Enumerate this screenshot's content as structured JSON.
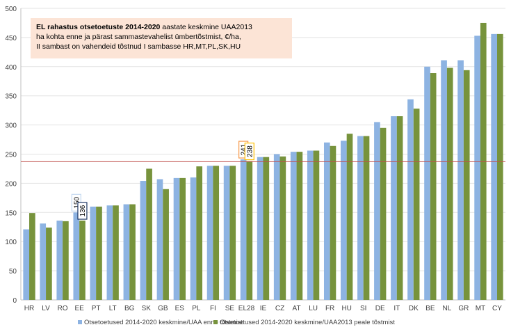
{
  "chart_data": {
    "type": "bar",
    "title_bold": "EL rahastus otsetoetuste 2014-2020",
    "title_rest": " aastate keskmine  UAA2013",
    "title_line2": "ha kohta enne ja pärast sammastevahelist ümbertõstmist, €/ha,",
    "title_line3": "II sambast on vahendeid tõstnud I sambasse HR,MT,PL,SK,HU",
    "categories": [
      "HR",
      "LV",
      "RO",
      "EE",
      "PT",
      "LT",
      "BG",
      "SK",
      "GB",
      "ES",
      "PL",
      "FI",
      "SE",
      "EL28",
      "IE",
      "CZ",
      "AT",
      "LU",
      "FR",
      "HU",
      "SI",
      "DE",
      "IT",
      "DK",
      "BE",
      "NL",
      "GR",
      "MT",
      "CY"
    ],
    "series": [
      {
        "name": "Otsetoetused 2014-2020 keskmine/UAA enne tõstmist",
        "color": "#8db3e2",
        "values": [
          121,
          131,
          136,
          150,
          160,
          162,
          164,
          204,
          207,
          209,
          210,
          230,
          230,
          241,
          245,
          250,
          254,
          256,
          270,
          273,
          281,
          305,
          315,
          344,
          400,
          411,
          411,
          453,
          456
        ]
      },
      {
        "name": "Otsetoetused 2014-2020 keskmine/UAA2013 peale tõstmist",
        "color": "#77933c",
        "values": [
          149,
          124,
          135,
          136,
          160,
          162,
          164,
          225,
          190,
          209,
          229,
          230,
          230,
          238,
          245,
          246,
          254,
          256,
          264,
          285,
          281,
          295,
          315,
          328,
          389,
          398,
          394,
          475,
          456
        ]
      }
    ],
    "data_labels": [
      {
        "category": "EE",
        "series": 0,
        "text": "150",
        "border": "#c5d9f1"
      },
      {
        "category": "EE",
        "series": 1,
        "text": "136",
        "border": "#1f3864"
      },
      {
        "category": "EL28",
        "series": 0,
        "text": "241",
        "border": "#f79646"
      },
      {
        "category": "EL28",
        "series": 1,
        "text": "238",
        "border": "#ffc000"
      }
    ],
    "reference_line": {
      "value": 237,
      "color": "#c0504d"
    },
    "ylim": [
      0,
      500
    ],
    "yticks": [
      0,
      50,
      100,
      150,
      200,
      250,
      300,
      350,
      400,
      450,
      500
    ],
    "grid": true,
    "legend": "bottom"
  }
}
